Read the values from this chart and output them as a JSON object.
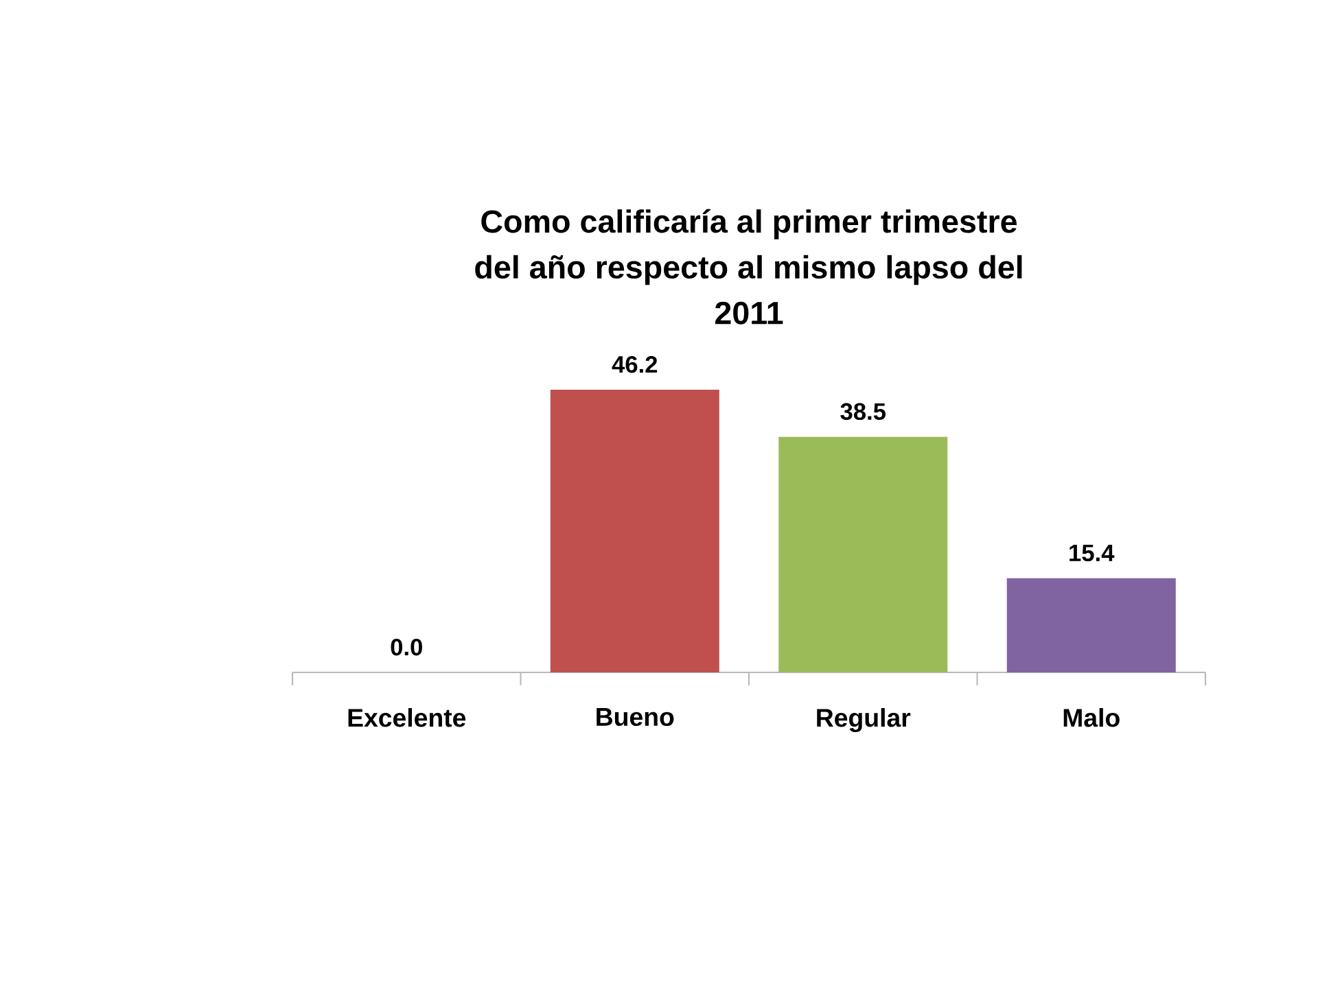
{
  "chart_data": {
    "type": "bar",
    "title": "Como calificaría al primer trimestre del año respecto al mismo lapso del 2011",
    "categories": [
      "Excelente",
      "Bueno",
      "Regular",
      "Malo"
    ],
    "values": [
      0.0,
      46.2,
      38.5,
      15.4
    ],
    "value_labels": [
      "0.0",
      "46.2",
      "38.5",
      "15.4"
    ],
    "colors": [
      "#4f81bd",
      "#c0504d",
      "#9bbb59",
      "#8064a2"
    ]
  }
}
